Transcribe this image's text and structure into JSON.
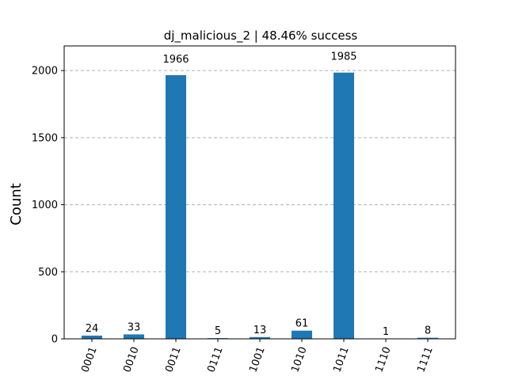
{
  "chart_data": {
    "type": "bar",
    "title": "dj_malicious_2 | 48.46% success",
    "xlabel": "",
    "ylabel": "Count",
    "categories": [
      "0001",
      "0010",
      "0011",
      "0111",
      "1001",
      "1010",
      "1011",
      "1110",
      "1111"
    ],
    "values": [
      24,
      33,
      1966,
      5,
      13,
      61,
      1985,
      1,
      8
    ],
    "value_labels": [
      "24",
      "33",
      "1966",
      "5",
      "13",
      "61",
      "1985",
      "1",
      "8"
    ],
    "ylim": [
      0,
      2184
    ],
    "yticks": [
      0,
      500,
      1000,
      1500,
      2000
    ],
    "ytick_labels": [
      "0",
      "500",
      "1000",
      "1500",
      "2000"
    ],
    "grid": "horizontal dashed",
    "bar_color": "#1f77b4",
    "grid_color": "#b0b0b0"
  }
}
